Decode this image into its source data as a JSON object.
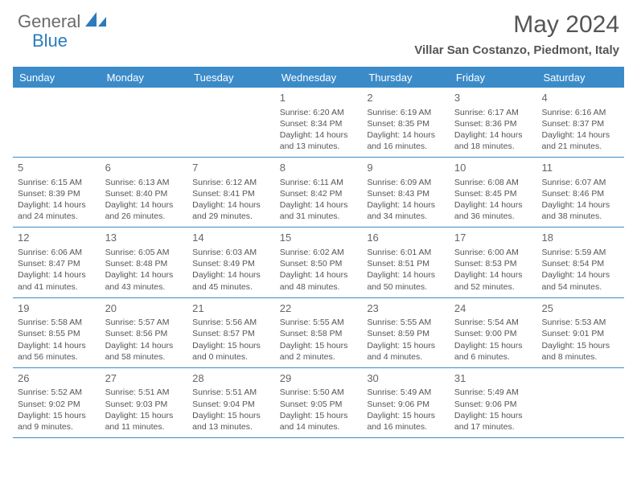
{
  "logo": {
    "part1": "General",
    "part2": "Blue"
  },
  "title": "May 2024",
  "location": "Villar San Costanzo, Piedmont, Italy",
  "colors": {
    "header_bg": "#3b8bc9",
    "accent": "#2b7bbd",
    "text": "#555555",
    "border": "#3b8bc9",
    "bg": "#ffffff"
  },
  "day_headers": [
    "Sunday",
    "Monday",
    "Tuesday",
    "Wednesday",
    "Thursday",
    "Friday",
    "Saturday"
  ],
  "weeks": [
    [
      {
        "day": "",
        "lines": []
      },
      {
        "day": "",
        "lines": []
      },
      {
        "day": "",
        "lines": []
      },
      {
        "day": "1",
        "lines": [
          "Sunrise: 6:20 AM",
          "Sunset: 8:34 PM",
          "Daylight: 14 hours",
          "and 13 minutes."
        ]
      },
      {
        "day": "2",
        "lines": [
          "Sunrise: 6:19 AM",
          "Sunset: 8:35 PM",
          "Daylight: 14 hours",
          "and 16 minutes."
        ]
      },
      {
        "day": "3",
        "lines": [
          "Sunrise: 6:17 AM",
          "Sunset: 8:36 PM",
          "Daylight: 14 hours",
          "and 18 minutes."
        ]
      },
      {
        "day": "4",
        "lines": [
          "Sunrise: 6:16 AM",
          "Sunset: 8:37 PM",
          "Daylight: 14 hours",
          "and 21 minutes."
        ]
      }
    ],
    [
      {
        "day": "5",
        "lines": [
          "Sunrise: 6:15 AM",
          "Sunset: 8:39 PM",
          "Daylight: 14 hours",
          "and 24 minutes."
        ]
      },
      {
        "day": "6",
        "lines": [
          "Sunrise: 6:13 AM",
          "Sunset: 8:40 PM",
          "Daylight: 14 hours",
          "and 26 minutes."
        ]
      },
      {
        "day": "7",
        "lines": [
          "Sunrise: 6:12 AM",
          "Sunset: 8:41 PM",
          "Daylight: 14 hours",
          "and 29 minutes."
        ]
      },
      {
        "day": "8",
        "lines": [
          "Sunrise: 6:11 AM",
          "Sunset: 8:42 PM",
          "Daylight: 14 hours",
          "and 31 minutes."
        ]
      },
      {
        "day": "9",
        "lines": [
          "Sunrise: 6:09 AM",
          "Sunset: 8:43 PM",
          "Daylight: 14 hours",
          "and 34 minutes."
        ]
      },
      {
        "day": "10",
        "lines": [
          "Sunrise: 6:08 AM",
          "Sunset: 8:45 PM",
          "Daylight: 14 hours",
          "and 36 minutes."
        ]
      },
      {
        "day": "11",
        "lines": [
          "Sunrise: 6:07 AM",
          "Sunset: 8:46 PM",
          "Daylight: 14 hours",
          "and 38 minutes."
        ]
      }
    ],
    [
      {
        "day": "12",
        "lines": [
          "Sunrise: 6:06 AM",
          "Sunset: 8:47 PM",
          "Daylight: 14 hours",
          "and 41 minutes."
        ]
      },
      {
        "day": "13",
        "lines": [
          "Sunrise: 6:05 AM",
          "Sunset: 8:48 PM",
          "Daylight: 14 hours",
          "and 43 minutes."
        ]
      },
      {
        "day": "14",
        "lines": [
          "Sunrise: 6:03 AM",
          "Sunset: 8:49 PM",
          "Daylight: 14 hours",
          "and 45 minutes."
        ]
      },
      {
        "day": "15",
        "lines": [
          "Sunrise: 6:02 AM",
          "Sunset: 8:50 PM",
          "Daylight: 14 hours",
          "and 48 minutes."
        ]
      },
      {
        "day": "16",
        "lines": [
          "Sunrise: 6:01 AM",
          "Sunset: 8:51 PM",
          "Daylight: 14 hours",
          "and 50 minutes."
        ]
      },
      {
        "day": "17",
        "lines": [
          "Sunrise: 6:00 AM",
          "Sunset: 8:53 PM",
          "Daylight: 14 hours",
          "and 52 minutes."
        ]
      },
      {
        "day": "18",
        "lines": [
          "Sunrise: 5:59 AM",
          "Sunset: 8:54 PM",
          "Daylight: 14 hours",
          "and 54 minutes."
        ]
      }
    ],
    [
      {
        "day": "19",
        "lines": [
          "Sunrise: 5:58 AM",
          "Sunset: 8:55 PM",
          "Daylight: 14 hours",
          "and 56 minutes."
        ]
      },
      {
        "day": "20",
        "lines": [
          "Sunrise: 5:57 AM",
          "Sunset: 8:56 PM",
          "Daylight: 14 hours",
          "and 58 minutes."
        ]
      },
      {
        "day": "21",
        "lines": [
          "Sunrise: 5:56 AM",
          "Sunset: 8:57 PM",
          "Daylight: 15 hours",
          "and 0 minutes."
        ]
      },
      {
        "day": "22",
        "lines": [
          "Sunrise: 5:55 AM",
          "Sunset: 8:58 PM",
          "Daylight: 15 hours",
          "and 2 minutes."
        ]
      },
      {
        "day": "23",
        "lines": [
          "Sunrise: 5:55 AM",
          "Sunset: 8:59 PM",
          "Daylight: 15 hours",
          "and 4 minutes."
        ]
      },
      {
        "day": "24",
        "lines": [
          "Sunrise: 5:54 AM",
          "Sunset: 9:00 PM",
          "Daylight: 15 hours",
          "and 6 minutes."
        ]
      },
      {
        "day": "25",
        "lines": [
          "Sunrise: 5:53 AM",
          "Sunset: 9:01 PM",
          "Daylight: 15 hours",
          "and 8 minutes."
        ]
      }
    ],
    [
      {
        "day": "26",
        "lines": [
          "Sunrise: 5:52 AM",
          "Sunset: 9:02 PM",
          "Daylight: 15 hours",
          "and 9 minutes."
        ]
      },
      {
        "day": "27",
        "lines": [
          "Sunrise: 5:51 AM",
          "Sunset: 9:03 PM",
          "Daylight: 15 hours",
          "and 11 minutes."
        ]
      },
      {
        "day": "28",
        "lines": [
          "Sunrise: 5:51 AM",
          "Sunset: 9:04 PM",
          "Daylight: 15 hours",
          "and 13 minutes."
        ]
      },
      {
        "day": "29",
        "lines": [
          "Sunrise: 5:50 AM",
          "Sunset: 9:05 PM",
          "Daylight: 15 hours",
          "and 14 minutes."
        ]
      },
      {
        "day": "30",
        "lines": [
          "Sunrise: 5:49 AM",
          "Sunset: 9:06 PM",
          "Daylight: 15 hours",
          "and 16 minutes."
        ]
      },
      {
        "day": "31",
        "lines": [
          "Sunrise: 5:49 AM",
          "Sunset: 9:06 PM",
          "Daylight: 15 hours",
          "and 17 minutes."
        ]
      },
      {
        "day": "",
        "lines": []
      }
    ]
  ]
}
